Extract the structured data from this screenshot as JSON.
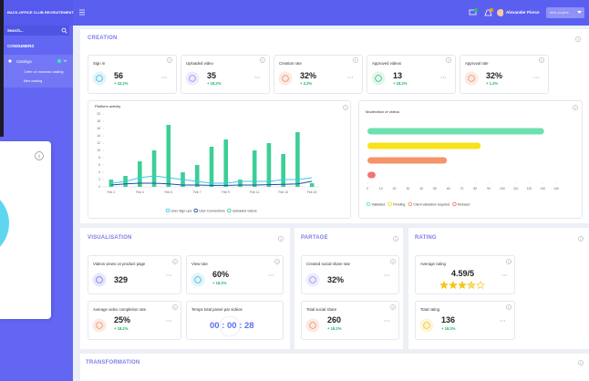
{
  "topbar": {
    "title": "BACK-OFFICE CLUB RECRUITEMENT",
    "user": "Alexander Pierce",
    "menu": "Mes projets"
  },
  "sidebar": {
    "search": "Search...",
    "section": "CONSUMERS",
    "item": "Castings",
    "subitems": [
      "Créer un nouveau casting",
      "Mes casting"
    ]
  },
  "creation": {
    "title": "CREATION",
    "cards": [
      {
        "label": "Sign in",
        "value": 56,
        "change": "+ 32.2%"
      },
      {
        "label": "Uploaded video",
        "value": 35,
        "change": "+ 18.2%"
      },
      {
        "label": "Creation rate",
        "value": "32%",
        "change": "+ 3.2%"
      },
      {
        "label": "Approved videos",
        "value": 13,
        "change": "+ 18.2%"
      },
      {
        "label": "Approval rate",
        "value": "32%",
        "change": "+ 1.2%"
      }
    ]
  },
  "chart_data": [
    {
      "type": "bar",
      "title": "Platform activity",
      "categories": [
        "Feb 1",
        null,
        "Feb 3",
        null,
        "Feb 5",
        null,
        "Feb 7",
        null,
        "Feb 9",
        null,
        "Feb 11",
        null,
        "Feb 13",
        null,
        "Feb 15"
      ],
      "series": [
        {
          "name": "User Sign-ups",
          "color": "#38c9e6",
          "type": "line",
          "values": [
            1,
            1.5,
            2.5,
            3,
            2.5,
            2,
            1.5,
            1,
            1,
            1.5,
            1.5,
            1.5,
            2,
            2,
            2.5
          ]
        },
        {
          "name": "User Connections",
          "color": "#1d4fa0",
          "type": "line",
          "values": [
            0.5,
            0.8,
            1,
            1,
            0.8,
            0.5,
            0.5,
            0.4,
            0.4,
            0.5,
            0.5,
            0.6,
            0.7,
            0.8,
            1.5
          ]
        },
        {
          "name": "Uploaded videos",
          "color": "#3ccf95",
          "type": "bar",
          "values": [
            2,
            3,
            7,
            10,
            17,
            4,
            6,
            11,
            13,
            2,
            10,
            12,
            9,
            15,
            1
          ]
        }
      ],
      "ylim": [
        0,
        20
      ],
      "yticks": [
        0,
        2,
        4,
        6,
        8,
        10,
        12,
        14,
        16,
        18,
        20
      ]
    },
    {
      "type": "hbar",
      "title": "Moderation of videos",
      "categories": [
        "Validated",
        "Pending",
        "Client validation required",
        "Refused"
      ],
      "values": [
        131,
        84,
        59,
        6
      ],
      "colors": [
        "#6ee0b0",
        "#f8e21c",
        "#f5946a",
        "#f27474"
      ],
      "xlim": [
        0,
        140
      ],
      "xticks": [
        0,
        10,
        20,
        30,
        40,
        50,
        60,
        70,
        80,
        90,
        100,
        110,
        120,
        130,
        140
      ]
    }
  ],
  "visualisation": {
    "title": "VISUALISATION",
    "cards": [
      {
        "label": "Videos views on product page",
        "value": 329
      },
      {
        "label": "View rate",
        "value": "60%",
        "change": "+ 18.2%"
      },
      {
        "label": "Average video completion rate",
        "value": "25%",
        "change": "+ 18.2%"
      },
      {
        "label": "Temps total passé par vidéos",
        "value": "00 : 00 : 28"
      }
    ]
  },
  "partage": {
    "title": "PARTAGE",
    "cards": [
      {
        "label": "Created social share rate",
        "value": "32%"
      },
      {
        "label": "Total social share",
        "value": 260,
        "change": "+ 18.2%"
      }
    ]
  },
  "rating": {
    "title": "RATING",
    "cards": [
      {
        "label": "Average rating",
        "value": "4.59/5"
      },
      {
        "label": "Total rating",
        "value": 136,
        "change": "+ 18.2%"
      }
    ]
  },
  "transformation": {
    "title": "TRANSFORMATION"
  }
}
